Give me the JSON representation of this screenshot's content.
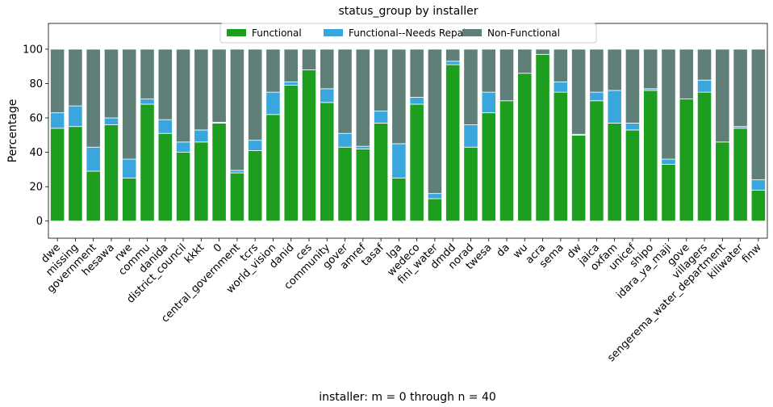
{
  "chart_data": {
    "type": "bar",
    "stacked": true,
    "title": "status_group by installer",
    "xlabel": "installer: m = 0 through n = 40",
    "ylabel": "Percentage",
    "ylim": [
      -10,
      115
    ],
    "yticks": [
      0,
      20,
      40,
      60,
      80,
      100
    ],
    "grid": false,
    "legend_position": "top-center",
    "categories": [
      "dwe",
      "missing",
      "government",
      "hesawa",
      "rwe",
      "commu",
      "danida",
      "district_council",
      "kkkt",
      "0",
      "central_government",
      "tcrs",
      "world_vision",
      "danid",
      "ces",
      "community",
      "gover",
      "amref",
      "tasaf",
      "lga",
      "wedeco",
      "fini_water",
      "dmdd",
      "norad",
      "twesa",
      "da",
      "wu",
      "acra",
      "sema",
      "dw",
      "jaica",
      "oxfam",
      "unicef",
      "shipo",
      "idara_ya_maji",
      "gove",
      "villagers",
      "sengerema_water_department",
      "kiliwater",
      "finw"
    ],
    "series": [
      {
        "name": "Functional",
        "color": "#1e9e1e",
        "values": [
          54,
          55,
          29,
          56,
          25,
          68,
          51,
          40,
          46,
          57,
          28,
          41,
          62,
          79,
          88,
          69,
          43,
          42,
          57,
          25,
          68,
          13,
          91,
          43,
          63,
          70,
          86,
          97,
          75,
          50,
          70,
          57,
          53,
          76,
          33,
          71,
          75,
          46,
          54,
          18
        ]
      },
      {
        "name": "Functional--Needs Repair",
        "color": "#3aa6de",
        "values": [
          9,
          12,
          14,
          4,
          11,
          3,
          8,
          6,
          7,
          0.5,
          1.5,
          6,
          13,
          2,
          0,
          8,
          8,
          1.5,
          7,
          20,
          4,
          3,
          2,
          13,
          12,
          0,
          0,
          0,
          6,
          0.5,
          5,
          19,
          4,
          1,
          3,
          0,
          7,
          0,
          1,
          6
        ]
      },
      {
        "name": "Non-Functional",
        "color": "#607f78",
        "values": [
          37,
          33,
          57,
          40,
          64,
          29,
          41,
          54,
          47,
          42.5,
          70.5,
          53,
          25,
          19,
          12,
          23,
          49,
          56.5,
          36,
          55,
          28,
          84,
          7,
          44,
          25,
          30,
          14,
          3,
          19,
          49.5,
          25,
          24,
          43,
          23,
          64,
          29,
          18,
          54,
          45,
          76
        ]
      }
    ]
  }
}
